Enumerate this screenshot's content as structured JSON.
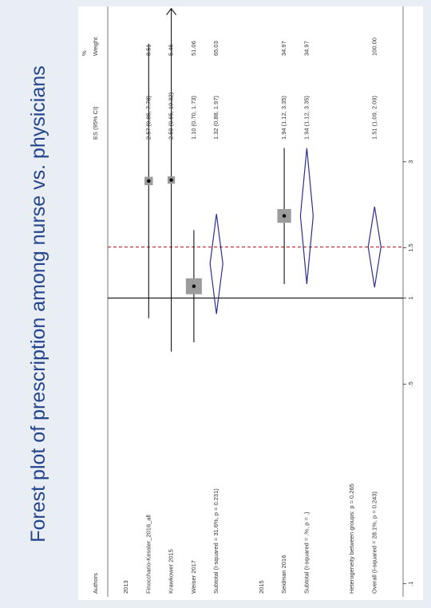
{
  "page_title": "Forest plot of prescription among nurse vs. physicians",
  "colors": {
    "background": "#e9eef4",
    "panel": "#ffffff",
    "title": "#26458f",
    "diamond": "#2d2e8f",
    "reference_line": "#c0262c",
    "box": "#9c9c9c"
  },
  "chart_data": {
    "type": "forest",
    "scale": "log",
    "xlim": [
      0.09,
      10.5
    ],
    "ticks": [
      {
        "value": 0.1,
        "label": ".1"
      },
      {
        "value": 0.5,
        "label": ".5"
      },
      {
        "value": 1,
        "label": "1"
      },
      {
        "value": 1.5,
        "label": "1.5"
      },
      {
        "value": 3,
        "label": "3"
      }
    ],
    "null_line": 1,
    "overall_line": 1.51,
    "headers": {
      "authors": "Authors",
      "es": "ES (95% CI)",
      "weight_top": "%",
      "weight": "Weight"
    },
    "rows": [
      {
        "kind": "group",
        "label": "2013"
      },
      {
        "kind": "study",
        "label": "Finocchario-Kessler_2016_all",
        "es": 2.57,
        "lo": 0.85,
        "hi": 7.78,
        "ci_text": "2.57 (0.85, 7.78)",
        "weight": 8.51,
        "weight_text": "8.51"
      },
      {
        "kind": "study",
        "label": "Krawkower 2015",
        "es": 2.59,
        "lo": 0.65,
        "hi": 10.32,
        "ci_text": "2.59 (0.65, 10.32)",
        "weight": 5.46,
        "weight_text": "5.46"
      },
      {
        "kind": "study",
        "label": "Weiser 2017",
        "es": 1.1,
        "lo": 0.7,
        "hi": 1.73,
        "ci_text": "1.10 (0.70, 1.73)",
        "weight": 51.06,
        "weight_text": "51.06"
      },
      {
        "kind": "subtotal",
        "label": "Subtotal  (I-squared = 31.6%, p = 0.231)",
        "es": 1.32,
        "lo": 0.88,
        "hi": 1.97,
        "ci_text": "1.32 (0.88, 1.97)",
        "weight_text": "65.03"
      },
      {
        "kind": "blank"
      },
      {
        "kind": "group",
        "label": "2015"
      },
      {
        "kind": "study",
        "label": "Seidman 2016",
        "es": 1.94,
        "lo": 1.12,
        "hi": 3.35,
        "ci_text": "1.94 (1.12, 3.35)",
        "weight": 34.97,
        "weight_text": "34.97"
      },
      {
        "kind": "subtotal",
        "label": "Subtotal  (I-squared = .%, p = .)",
        "es": 1.94,
        "lo": 1.12,
        "hi": 3.35,
        "ci_text": "1.94 (1.12, 3.35)",
        "weight_text": "34.97"
      },
      {
        "kind": "blank"
      },
      {
        "kind": "note",
        "label": "Heterogeneity between groups: p = 0.265"
      },
      {
        "kind": "overall",
        "label": "Overall  (I-squared = 28.1%, p = 0.243)",
        "es": 1.51,
        "lo": 1.09,
        "hi": 2.09,
        "ci_text": "1.51 (1.09, 2.09)",
        "weight_text": "100.00"
      }
    ]
  }
}
